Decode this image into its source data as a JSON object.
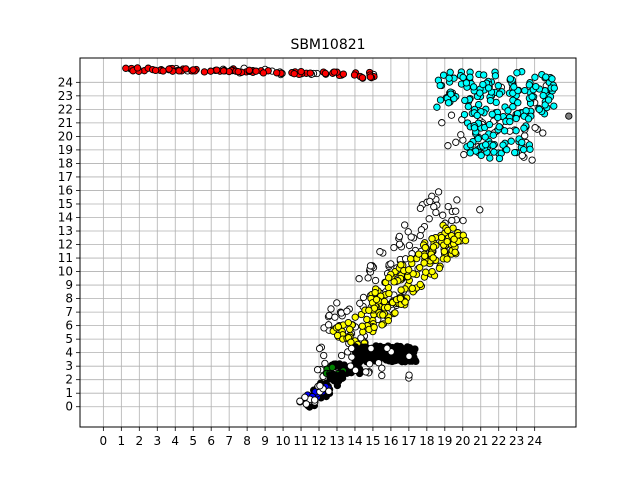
{
  "chart_data": {
    "type": "scatter",
    "title": "SBM10821",
    "xlabel": "",
    "ylabel": "",
    "xlim": [
      -1.3,
      26.3
    ],
    "ylim": [
      -1.5,
      25.8
    ],
    "xticks": [
      0,
      1,
      2,
      3,
      4,
      5,
      6,
      7,
      8,
      9,
      10,
      11,
      12,
      13,
      14,
      15,
      16,
      17,
      18,
      19,
      20,
      21,
      22,
      23,
      24
    ],
    "yticks": [
      0,
      1,
      2,
      3,
      4,
      5,
      6,
      7,
      8,
      9,
      10,
      11,
      12,
      13,
      14,
      15,
      16,
      17,
      18,
      19,
      20,
      21,
      22,
      23,
      24
    ],
    "grid": true,
    "colors": {
      "red": "#ff0000",
      "cyan": "#00ffff",
      "yellow": "#ffff00",
      "black": "#000000",
      "green": "#008000",
      "blue": "#0000ff",
      "white": "#ffffff",
      "gray": "#808080"
    },
    "clusters": [
      {
        "color": "white",
        "kind": "line",
        "from": [
          -0.1,
          25.0
        ],
        "to": [
          15.8,
          24.6
        ],
        "n": 20,
        "spread": 0.12
      },
      {
        "color": "red",
        "kind": "line",
        "from": [
          1.2,
          25.0
        ],
        "to": [
          15.0,
          24.6
        ],
        "n": 80,
        "spread": 0.1
      },
      {
        "color": "red",
        "kind": "blob",
        "center": [
          14.7,
          24.3
        ],
        "size": [
          0.5,
          0.3
        ],
        "n": 6
      },
      {
        "color": "white",
        "kind": "blob",
        "center": [
          21.8,
          21.0
        ],
        "size": [
          3.0,
          3.0
        ],
        "n": 40
      },
      {
        "color": "cyan",
        "kind": "blob",
        "center": [
          21.8,
          23.2
        ],
        "size": [
          3.3,
          1.6
        ],
        "n": 130
      },
      {
        "color": "cyan",
        "kind": "blob",
        "center": [
          22.0,
          20.3
        ],
        "size": [
          1.8,
          1.6
        ],
        "n": 70
      },
      {
        "color": "cyan",
        "kind": "blob",
        "center": [
          21.6,
          18.9
        ],
        "size": [
          0.9,
          0.6
        ],
        "n": 14
      },
      {
        "color": "gray",
        "kind": "point",
        "center": [
          25.9,
          21.5
        ]
      },
      {
        "color": "white",
        "kind": "band",
        "from": [
          13.0,
          5.0
        ],
        "to": [
          19.7,
          15.4
        ],
        "width": 1.5,
        "n": 120
      },
      {
        "color": "yellow",
        "kind": "band",
        "from": [
          13.4,
          4.8
        ],
        "to": [
          19.8,
          13.1
        ],
        "width": 1.0,
        "n": 190
      },
      {
        "color": "black",
        "kind": "blob",
        "center": [
          15.7,
          3.9
        ],
        "size": [
          1.7,
          0.6
        ],
        "n": 140
      },
      {
        "color": "black",
        "kind": "blob",
        "center": [
          13.5,
          2.8
        ],
        "size": [
          0.8,
          0.4
        ],
        "n": 30
      },
      {
        "color": "white",
        "kind": "blob",
        "center": [
          14.5,
          3.2
        ],
        "size": [
          2.6,
          1.2
        ],
        "n": 30
      },
      {
        "color": "green",
        "kind": "blob",
        "center": [
          12.9,
          2.7
        ],
        "size": [
          0.5,
          0.3
        ],
        "n": 10
      },
      {
        "color": "black",
        "kind": "band",
        "from": [
          11.3,
          0.1
        ],
        "to": [
          13.3,
          2.5
        ],
        "width": 0.45,
        "n": 50
      },
      {
        "color": "blue",
        "kind": "band",
        "from": [
          11.3,
          0.4
        ],
        "to": [
          12.5,
          1.8
        ],
        "width": 0.3,
        "n": 14
      },
      {
        "color": "white",
        "kind": "band",
        "from": [
          11.0,
          -0.1
        ],
        "to": [
          12.4,
          1.5
        ],
        "width": 0.4,
        "n": 14
      }
    ]
  }
}
